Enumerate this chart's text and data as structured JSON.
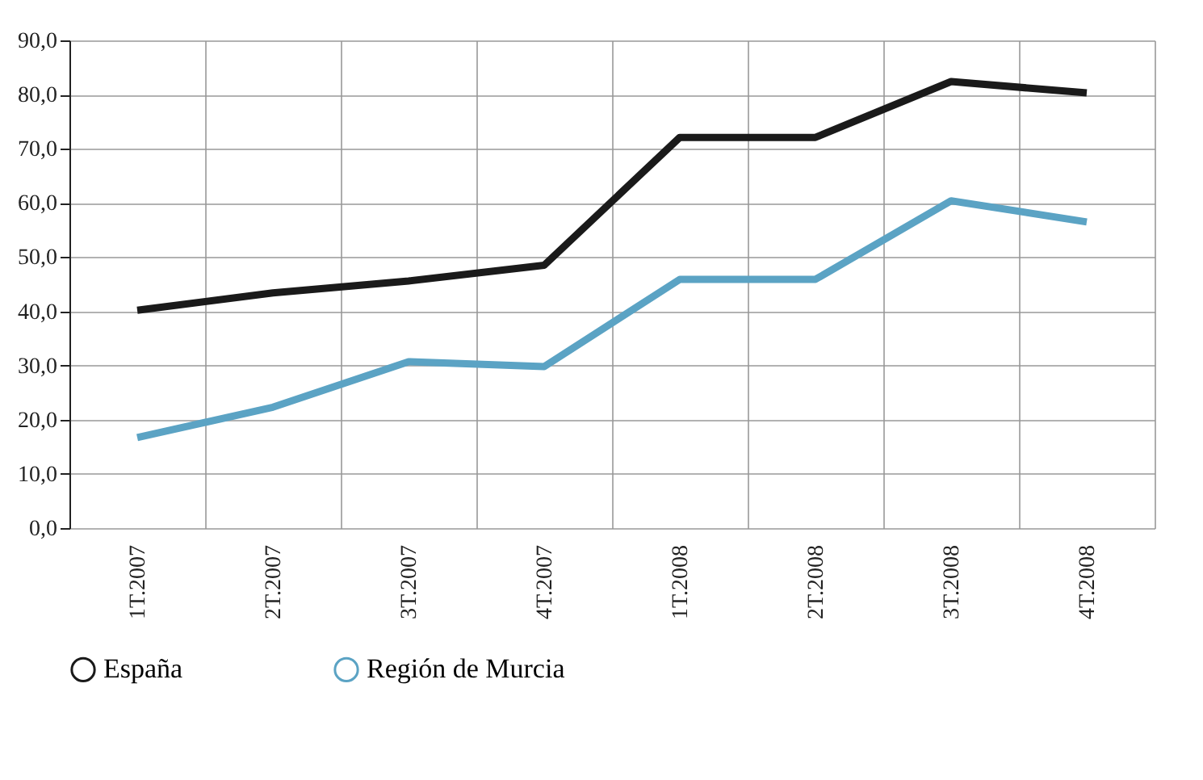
{
  "chart_data": {
    "type": "line",
    "categories": [
      "1T.2007",
      "2T.2007",
      "3T.2007",
      "4T.2007",
      "1T.2008",
      "2T.2008",
      "3T.2008",
      "4T.2008"
    ],
    "series": [
      {
        "name": "España",
        "color": "#1a1a1a",
        "values": [
          40.2,
          43.4,
          45.6,
          48.5,
          72.1,
          72.1,
          82.4,
          80.3
        ]
      },
      {
        "name": "Región de Murcia",
        "color": "#5ba3c4",
        "values": [
          16.7,
          22.3,
          30.7,
          29.8,
          45.9,
          45.9,
          60.4,
          56.5
        ]
      }
    ],
    "ylim": [
      0,
      90
    ],
    "yticks": [
      {
        "value": 0,
        "label": "0,0"
      },
      {
        "value": 10,
        "label": "10,0"
      },
      {
        "value": 20,
        "label": "20,0"
      },
      {
        "value": 30,
        "label": "30,0"
      },
      {
        "value": 40,
        "label": "40,0"
      },
      {
        "value": 50,
        "label": "50,0"
      },
      {
        "value": 60,
        "label": "60,0"
      },
      {
        "value": 70,
        "label": "70,0"
      },
      {
        "value": 80,
        "label": "80,0"
      },
      {
        "value": 90,
        "label": "90,0"
      }
    ],
    "grid": true,
    "legend": "bottom left",
    "marker": "none",
    "line_style": "solid"
  }
}
